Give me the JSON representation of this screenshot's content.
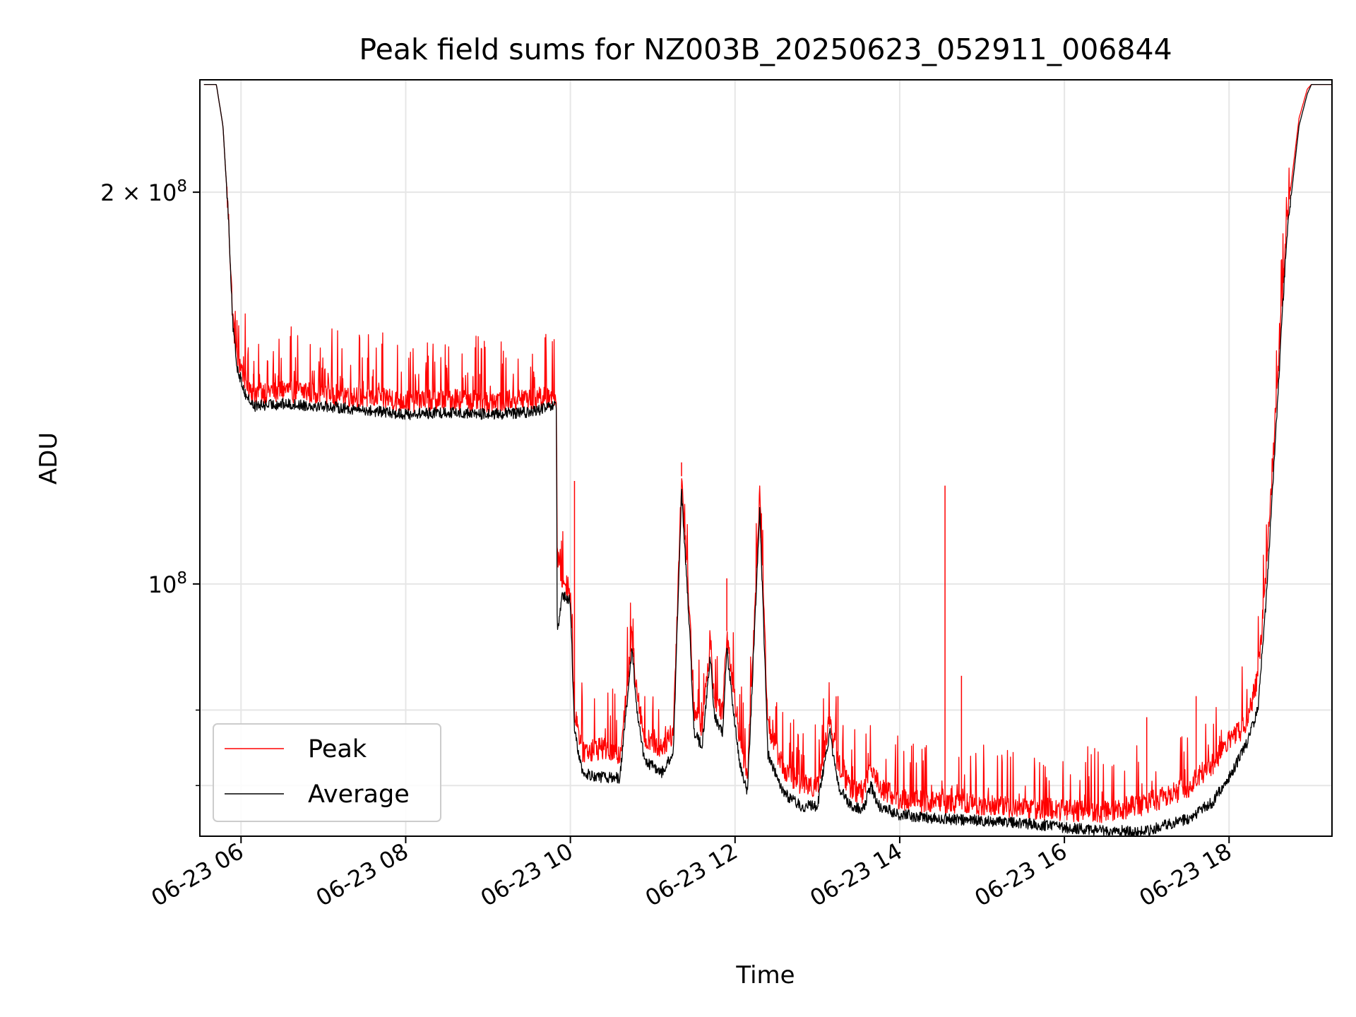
{
  "chart_data": {
    "type": "line",
    "title": "Peak field sums for NZ003B_20250623_052911_006844",
    "xlabel": "Time",
    "ylabel": "ADU",
    "yscale": "log",
    "grid": true,
    "legend_position": "lower-left",
    "xlim_hours": [
      5.5,
      19.25
    ],
    "ylim": [
      64000000,
      244000000
    ],
    "x_ticks": [
      {
        "hour": 6,
        "label": "06-23 06"
      },
      {
        "hour": 8,
        "label": "06-23 08"
      },
      {
        "hour": 10,
        "label": "06-23 10"
      },
      {
        "hour": 12,
        "label": "06-23 12"
      },
      {
        "hour": 14,
        "label": "06-23 14"
      },
      {
        "hour": 16,
        "label": "06-23 16"
      },
      {
        "hour": 18,
        "label": "06-23 18"
      }
    ],
    "y_major_ticks": [
      {
        "value": 100000000,
        "base": "10",
        "exp": "8",
        "mantissa": ""
      },
      {
        "value": 200000000,
        "base": "10",
        "exp": "8",
        "mantissa": "2 × "
      }
    ],
    "y_minor_ticks": [
      70000000,
      80000000
    ],
    "series": [
      {
        "name": "Peak",
        "color": "#ff0000",
        "noise": 0.045,
        "x": [
          5.55,
          5.7,
          5.78,
          5.85,
          5.9,
          5.95,
          6.05,
          6.15,
          6.5,
          7,
          7.5,
          8,
          8.5,
          9,
          9.5,
          9.8,
          9.83,
          9.84,
          9.9,
          10.0,
          10.05,
          10.15,
          10.4,
          10.6,
          10.75,
          10.8,
          10.9,
          11.0,
          11.1,
          11.25,
          11.35,
          11.45,
          11.5,
          11.6,
          11.7,
          11.75,
          11.85,
          11.9,
          12.05,
          12.15,
          12.3,
          12.4,
          12.6,
          12.8,
          13.0,
          13.15,
          13.25,
          13.4,
          13.55,
          13.65,
          13.75,
          14.0,
          14.5,
          15.0,
          15.5,
          16.0,
          16.5,
          17.0,
          17.5,
          17.8,
          18.0,
          18.2,
          18.35,
          18.45,
          18.55,
          18.7,
          18.85,
          18.95,
          19.0,
          19.25
        ],
        "y": [
          242000000,
          242000000,
          225000000,
          190000000,
          160000000,
          150000000,
          144000000,
          140500000,
          141000000,
          140500000,
          139500000,
          138500000,
          139000000,
          138500000,
          139000000,
          140000000,
          140000000,
          105000000,
          101000000,
          99000000,
          80000000,
          74500000,
          75000000,
          74000000,
          91000000,
          84000000,
          76000000,
          75500000,
          75000000,
          77000000,
          121000000,
          95000000,
          80000000,
          78000000,
          90000000,
          82000000,
          80000000,
          92000000,
          77000000,
          71000000,
          118000000,
          78000000,
          72000000,
          70500000,
          70000000,
          79000000,
          73000000,
          70000000,
          69000000,
          73000000,
          70000000,
          68500000,
          68000000,
          67800000,
          67500000,
          67200000,
          67000000,
          68000000,
          70000000,
          73000000,
          76000000,
          78000000,
          85000000,
          102000000,
          130000000,
          190000000,
          228000000,
          240000000,
          242000000,
          242000000
        ],
        "spikes": [
          {
            "x": 6.15,
            "y": 145000000
          },
          {
            "x": 6.6,
            "y": 145000000
          },
          {
            "x": 8.9,
            "y": 145000000
          },
          {
            "x": 9.8,
            "y": 142000000
          },
          {
            "x": 10.05,
            "y": 120000000
          },
          {
            "x": 11.35,
            "y": 124000000
          },
          {
            "x": 11.9,
            "y": 101000000
          },
          {
            "x": 12.3,
            "y": 118000000
          },
          {
            "x": 13.25,
            "y": 82000000
          },
          {
            "x": 14.55,
            "y": 119000000
          },
          {
            "x": 14.75,
            "y": 85000000
          },
          {
            "x": 17.0,
            "y": 79000000
          },
          {
            "x": 17.6,
            "y": 82000000
          }
        ]
      },
      {
        "name": "Average",
        "color": "#000000",
        "noise": 0.02,
        "x": [
          5.55,
          5.7,
          5.78,
          5.85,
          5.9,
          5.95,
          6.05,
          6.15,
          6.5,
          7,
          7.5,
          8,
          8.5,
          9,
          9.5,
          9.8,
          9.83,
          9.84,
          9.9,
          10.0,
          10.05,
          10.15,
          10.4,
          10.6,
          10.75,
          10.8,
          10.9,
          11.0,
          11.1,
          11.25,
          11.35,
          11.45,
          11.5,
          11.6,
          11.7,
          11.75,
          11.85,
          11.9,
          12.05,
          12.15,
          12.3,
          12.4,
          12.6,
          12.8,
          13.0,
          13.15,
          13.25,
          13.4,
          13.55,
          13.65,
          13.75,
          14.0,
          14.5,
          15.0,
          15.5,
          16.0,
          16.5,
          17.0,
          17.5,
          17.8,
          18.0,
          18.2,
          18.35,
          18.45,
          18.55,
          18.7,
          18.85,
          18.95,
          19.0,
          19.25
        ],
        "y": [
          242000000,
          242000000,
          225000000,
          190000000,
          158000000,
          147000000,
          140000000,
          137000000,
          137500000,
          137000000,
          136000000,
          135000000,
          135500000,
          135000000,
          135500000,
          137000000,
          137000000,
          91000000,
          98000000,
          97000000,
          77000000,
          71500000,
          71000000,
          71000000,
          89000000,
          81000000,
          73000000,
          72500000,
          71500000,
          74000000,
          118000000,
          92000000,
          77000000,
          75000000,
          88000000,
          79000000,
          77000000,
          89000000,
          73000000,
          69000000,
          114000000,
          74000000,
          69000000,
          67500000,
          67500000,
          77000000,
          70000000,
          67500000,
          67000000,
          70000000,
          67500000,
          66500000,
          66000000,
          65800000,
          65500000,
          65000000,
          64600000,
          64600000,
          66000000,
          68000000,
          71000000,
          75000000,
          80000000,
          97000000,
          125000000,
          185000000,
          225000000,
          238000000,
          242000000,
          242000000
        ],
        "spikes": []
      }
    ]
  }
}
